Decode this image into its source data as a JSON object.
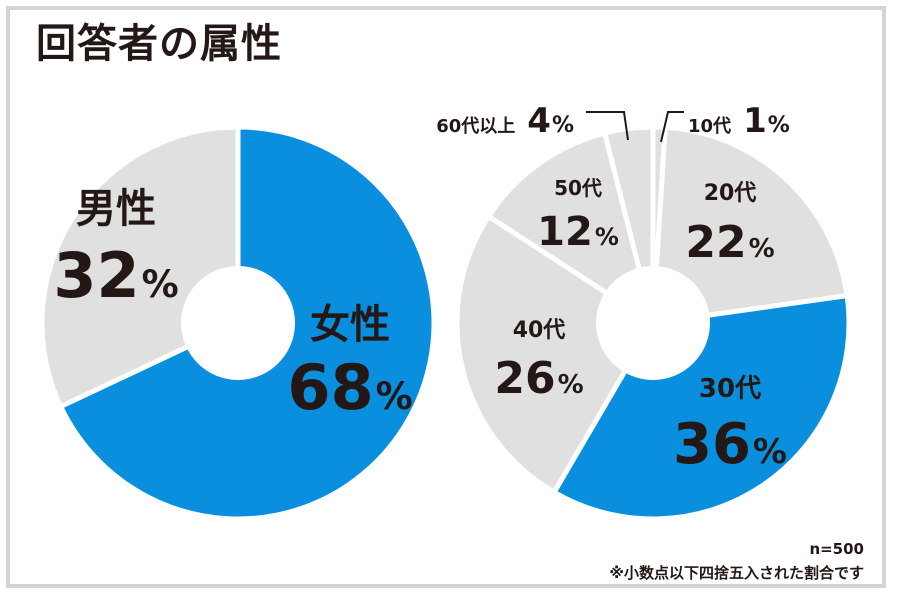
{
  "title": "回答者の属性",
  "colors": {
    "accent": "#0a8fdf",
    "muted": "#e0e0e0",
    "text": "#231815",
    "frame": "#d4d4d4"
  },
  "chart_data": [
    {
      "type": "pie",
      "categories": [
        "女性",
        "男性"
      ],
      "values": [
        68,
        32
      ],
      "value_labels": [
        "68",
        "32"
      ],
      "unit": "%",
      "colors": [
        "#0a8fdf",
        "#e0e0e0"
      ],
      "donut": true
    },
    {
      "type": "pie",
      "categories": [
        "10代",
        "20代",
        "30代",
        "40代",
        "50代",
        "60代以上"
      ],
      "values": [
        1,
        22,
        36,
        26,
        12,
        4
      ],
      "value_labels": [
        "1",
        "22",
        "36",
        "26",
        "12",
        "4"
      ],
      "unit": "%",
      "colors": [
        "#e0e0e0",
        "#e0e0e0",
        "#0a8fdf",
        "#e0e0e0",
        "#e0e0e0",
        "#e0e0e0"
      ],
      "donut": true
    }
  ],
  "footnote": {
    "sample": "n=500",
    "note": "※小数点以下四捨五入された割合です"
  }
}
